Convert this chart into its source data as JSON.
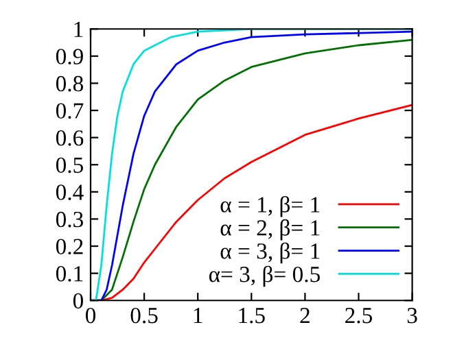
{
  "chart_data": {
    "type": "line",
    "xlim": [
      0,
      3
    ],
    "ylim": [
      0,
      1
    ],
    "xticks": [
      0,
      {
        "value": 0.5,
        "label": "0.5"
      },
      1,
      {
        "value": 1.5,
        "label": "1.5"
      },
      2,
      {
        "value": 2.5,
        "label": "2.5"
      },
      3
    ],
    "yticks": [
      0,
      0.1,
      0.2,
      0.3,
      0.4,
      0.5,
      0.6,
      0.7,
      0.8,
      0.9,
      1
    ],
    "grid": false,
    "legend": "bottom right",
    "marker": "none",
    "line_style": "solid",
    "series": [
      {
        "name": "α = 1, β= 1",
        "color": "#ff0000",
        "x": [
          0,
          0.1,
          0.2,
          0.3,
          0.4,
          0.5,
          0.6,
          0.8,
          1,
          1.25,
          1.5,
          2,
          2.5,
          3
        ],
        "values": [
          0,
          0,
          0.01,
          0.04,
          0.08,
          0.14,
          0.19,
          0.29,
          0.37,
          0.45,
          0.51,
          0.61,
          0.67,
          0.72
        ]
      },
      {
        "name": "α = 2, β= 1",
        "color": "#007000",
        "x": [
          0,
          0.1,
          0.2,
          0.3,
          0.4,
          0.5,
          0.6,
          0.8,
          1,
          1.25,
          1.5,
          2,
          2.5,
          3
        ],
        "values": [
          0,
          0,
          0.04,
          0.16,
          0.29,
          0.41,
          0.5,
          0.64,
          0.74,
          0.81,
          0.86,
          0.91,
          0.94,
          0.96
        ]
      },
      {
        "name": "α = 3, β= 1",
        "color": "#0000ff",
        "x": [
          0,
          0.1,
          0.15,
          0.2,
          0.3,
          0.4,
          0.5,
          0.6,
          0.8,
          1,
          1.25,
          1.5,
          2,
          3
        ],
        "values": [
          0,
          0,
          0.04,
          0.13,
          0.35,
          0.54,
          0.68,
          0.77,
          0.87,
          0.92,
          0.95,
          0.97,
          0.98,
          0.99
        ]
      },
      {
        "name": "α= 3, β= 0.5",
        "color": "#00e0e0",
        "x": [
          0,
          0.05,
          0.1,
          0.15,
          0.2,
          0.25,
          0.3,
          0.4,
          0.5,
          0.75,
          1,
          1.5,
          3
        ],
        "values": [
          0,
          0,
          0.13,
          0.35,
          0.54,
          0.68,
          0.77,
          0.87,
          0.92,
          0.97,
          0.99,
          1,
          1
        ]
      }
    ]
  }
}
